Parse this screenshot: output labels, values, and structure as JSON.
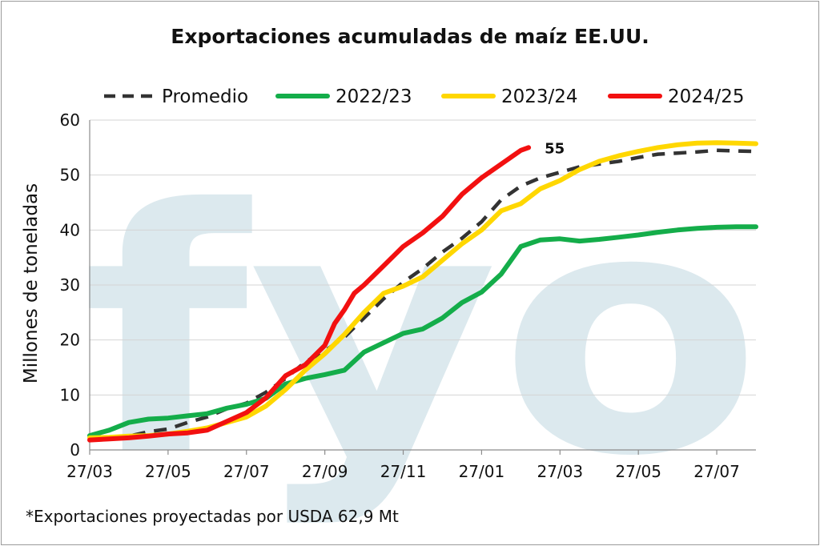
{
  "chart_data": {
    "type": "line",
    "title": "Exportaciones acumuladas de maíz EE.UU.",
    "ylabel": "Millones de toneladas",
    "xlabel": "",
    "ylim": [
      0,
      60
    ],
    "yticks": [
      0,
      10,
      20,
      30,
      40,
      50,
      60
    ],
    "xtick_labels": [
      "27/03",
      "27/05",
      "27/07",
      "27/09",
      "27/11",
      "27/01",
      "27/03",
      "27/05",
      "27/07"
    ],
    "x_index_range": [
      0,
      17
    ],
    "watermark": "fyo",
    "note": "*Exportaciones proyectadas por USDA 62,9 Mt",
    "legend_position": "top",
    "annotation": {
      "series": "2024/25",
      "text": "55"
    },
    "series": [
      {
        "name": "Promedio",
        "color": "#333333",
        "style": "dashed",
        "x": [
          0,
          1,
          1.5,
          2,
          2.5,
          3,
          3.5,
          4,
          4.5,
          5,
          5.5,
          6,
          6.5,
          7,
          7.5,
          8,
          8.5,
          9,
          9.5,
          10,
          10.5,
          11,
          11.5,
          12,
          12.5,
          13,
          13.5,
          14,
          14.5,
          15,
          15.5,
          16,
          16.5,
          17
        ],
        "y": [
          2.2,
          2.5,
          3.3,
          3.8,
          5.0,
          6.0,
          7.5,
          8.5,
          10.5,
          13.0,
          16.0,
          18.0,
          20.5,
          24.0,
          27.5,
          30.5,
          33.0,
          36.0,
          38.5,
          41.5,
          45.5,
          48.0,
          49.5,
          50.5,
          51.5,
          52.0,
          52.5,
          53.2,
          53.8,
          54.0,
          54.2,
          54.5,
          54.4,
          54.3
        ]
      },
      {
        "name": "2022/23",
        "color": "#14ad4a",
        "style": "solid",
        "x": [
          0,
          0.5,
          1,
          1.5,
          2,
          2.5,
          3,
          3.5,
          4,
          4.5,
          5,
          5.5,
          6,
          6.5,
          7,
          7.5,
          8,
          8.5,
          9,
          9.5,
          10,
          10.5,
          11,
          11.5,
          12,
          12.5,
          13,
          13.5,
          14,
          14.5,
          15,
          15.5,
          16,
          16.5,
          17
        ],
        "y": [
          2.6,
          3.6,
          5.0,
          5.6,
          5.8,
          6.2,
          6.6,
          7.6,
          8.3,
          9.4,
          12.0,
          13.0,
          13.7,
          14.5,
          17.8,
          19.5,
          21.2,
          22.0,
          24.0,
          26.8,
          28.7,
          32.0,
          37.0,
          38.2,
          38.4,
          38.0,
          38.3,
          38.7,
          39.1,
          39.6,
          40.0,
          40.3,
          40.5,
          40.6,
          40.6
        ]
      },
      {
        "name": "2023/24",
        "color": "#ffd700",
        "style": "solid",
        "x": [
          0,
          0.5,
          1,
          1.5,
          2,
          2.5,
          3,
          3.5,
          4,
          4.5,
          5,
          5.5,
          6,
          6.5,
          7,
          7.5,
          8,
          8.5,
          9,
          9.5,
          10,
          10.5,
          11,
          11.5,
          12,
          12.5,
          13,
          13.5,
          14,
          14.5,
          15,
          15.5,
          16,
          16.5,
          17
        ],
        "y": [
          2.2,
          2.3,
          2.5,
          2.6,
          2.9,
          3.4,
          4.0,
          5.0,
          6.0,
          8.0,
          11.0,
          14.5,
          17.5,
          21.0,
          25.0,
          28.5,
          29.8,
          31.5,
          34.5,
          37.5,
          40.0,
          43.5,
          44.8,
          47.5,
          49.0,
          51.0,
          52.5,
          53.5,
          54.3,
          55.0,
          55.5,
          55.8,
          55.9,
          55.8,
          55.7
        ]
      },
      {
        "name": "2024/25",
        "color": "#f21010",
        "style": "solid",
        "x": [
          0,
          0.5,
          1,
          1.5,
          2,
          2.5,
          3,
          3.5,
          4,
          4.5,
          5,
          5.5,
          6,
          6.25,
          6.5,
          6.75,
          7,
          7.5,
          8,
          8.5,
          9,
          9.5,
          10,
          10.5,
          11,
          11.2
        ],
        "y": [
          1.8,
          2.0,
          2.2,
          2.5,
          2.9,
          3.1,
          3.6,
          5.2,
          6.8,
          9.5,
          13.5,
          15.5,
          19.0,
          23.0,
          25.5,
          28.5,
          30.0,
          33.5,
          37.0,
          39.5,
          42.5,
          46.5,
          49.5,
          52.0,
          54.5,
          55.0
        ]
      }
    ]
  }
}
